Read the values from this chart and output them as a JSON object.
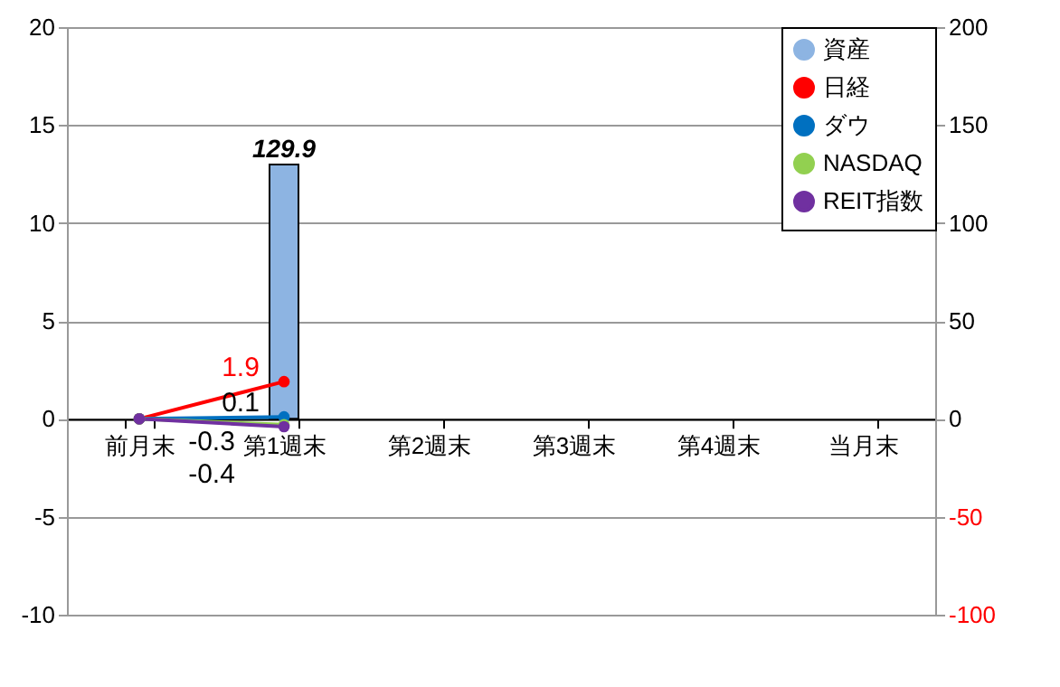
{
  "chart_data": {
    "type": "line",
    "categories": [
      "前月末",
      "第1週末",
      "第2週末",
      "第3週末",
      "第4週末",
      "当月末"
    ],
    "series": [
      {
        "name": "資産",
        "type": "bar",
        "axis": "y2",
        "color": "#8db4e2",
        "values": [
          null,
          129.9,
          null,
          null,
          null,
          null
        ],
        "value_labels": [
          null,
          "129.9",
          null,
          null,
          null,
          null
        ]
      },
      {
        "name": "日経",
        "color": "#ff0000",
        "values": [
          0,
          1.9,
          null,
          null,
          null,
          null
        ],
        "value_labels": [
          null,
          "1.9",
          null,
          null,
          null,
          null
        ]
      },
      {
        "name": "ダウ",
        "color": "#0070c0",
        "values": [
          0,
          0.1,
          null,
          null,
          null,
          null
        ],
        "value_labels": [
          null,
          "0.1",
          null,
          null,
          null,
          null
        ]
      },
      {
        "name": "NASDAQ",
        "color": "#92d050",
        "values": [
          0,
          -0.3,
          null,
          null,
          null,
          null
        ],
        "value_labels": [
          null,
          "-0.3",
          null,
          null,
          null,
          null
        ]
      },
      {
        "name": "REIT指数",
        "color": "#7030a0",
        "values": [
          0,
          -0.4,
          null,
          null,
          null,
          null
        ],
        "value_labels": [
          null,
          "-0.4",
          null,
          null,
          null,
          null
        ]
      }
    ],
    "ylim": [
      -10,
      20
    ],
    "yticks": [
      -10,
      -5,
      0,
      5,
      10,
      15,
      20
    ],
    "y2lim": [
      -100,
      200
    ],
    "y2ticks": [
      -100,
      -50,
      0,
      50,
      100,
      150,
      200
    ],
    "grid": "y",
    "legend": "top right",
    "marker": "circle",
    "line_style": "solid"
  }
}
